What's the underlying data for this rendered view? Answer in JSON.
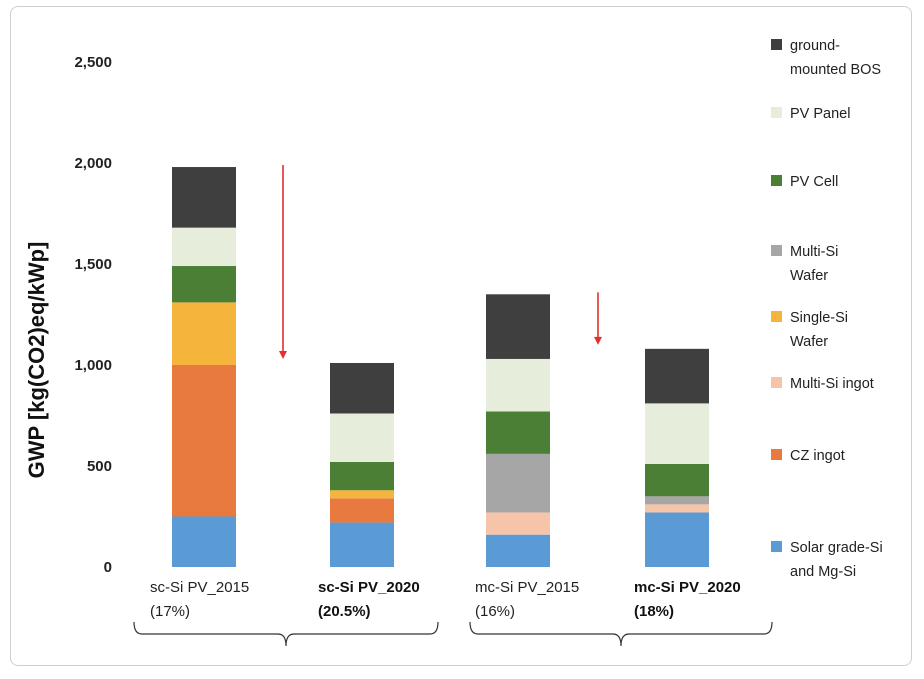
{
  "chart_data": {
    "type": "bar",
    "stacked": true,
    "ylabel": "GWP [kg(CO2)eq/kWp]",
    "xlabel": "",
    "ylim": [
      0,
      2500
    ],
    "yticks": [
      "0",
      "500",
      "1,000",
      "1,500",
      "2,000",
      "2,500"
    ],
    "ytick_values": [
      0,
      500,
      1000,
      1500,
      2000,
      2500
    ],
    "grid": false,
    "legend_position": "right",
    "categories": [
      {
        "line1": "sc-Si PV_2015",
        "line2": "(17%)",
        "bold": false
      },
      {
        "line1": "sc-Si PV_2020",
        "line2": "(20.5%)",
        "bold": true
      },
      {
        "line1": "mc-Si PV_2015",
        "line2": "(16%)",
        "bold": false
      },
      {
        "line1": "mc-Si PV_2020",
        "line2": "(18%)",
        "bold": true
      }
    ],
    "series": [
      {
        "name": "Solar grade-Si and Mg-Si",
        "legend_lines": [
          "Solar grade-Si",
          "and Mg-Si"
        ],
        "color": "#5b9bd5",
        "values": [
          250,
          220,
          160,
          270
        ]
      },
      {
        "name": "CZ ingot",
        "legend_lines": [
          "CZ ingot"
        ],
        "color": "#e97a3f",
        "values": [
          750,
          120,
          0,
          0
        ]
      },
      {
        "name": "Multi-Si ingot",
        "legend_lines": [
          "Multi-Si ingot"
        ],
        "color": "#f6c4a8",
        "values": [
          0,
          0,
          110,
          40
        ]
      },
      {
        "name": "Single-Si Wafer",
        "legend_lines": [
          "Single-Si",
          "Wafer"
        ],
        "color": "#f5b43c",
        "values": [
          310,
          40,
          0,
          0
        ]
      },
      {
        "name": "Multi-Si Wafer",
        "legend_lines": [
          "Multi-Si",
          "Wafer"
        ],
        "color": "#a6a6a6",
        "values": [
          0,
          0,
          290,
          40
        ]
      },
      {
        "name": "PV Cell",
        "legend_lines": [
          "PV Cell"
        ],
        "color": "#4a7f35",
        "values": [
          180,
          140,
          210,
          160
        ]
      },
      {
        "name": "PV Panel",
        "legend_lines": [
          "PV Panel"
        ],
        "color": "#e6eddb",
        "values": [
          190,
          240,
          260,
          300
        ]
      },
      {
        "name": "ground-mounted BOS",
        "legend_lines": [
          "ground-",
          "mounted BOS"
        ],
        "color": "#3f3f3f",
        "values": [
          300,
          250,
          320,
          270
        ]
      }
    ],
    "arrow_color": "#e03030"
  }
}
